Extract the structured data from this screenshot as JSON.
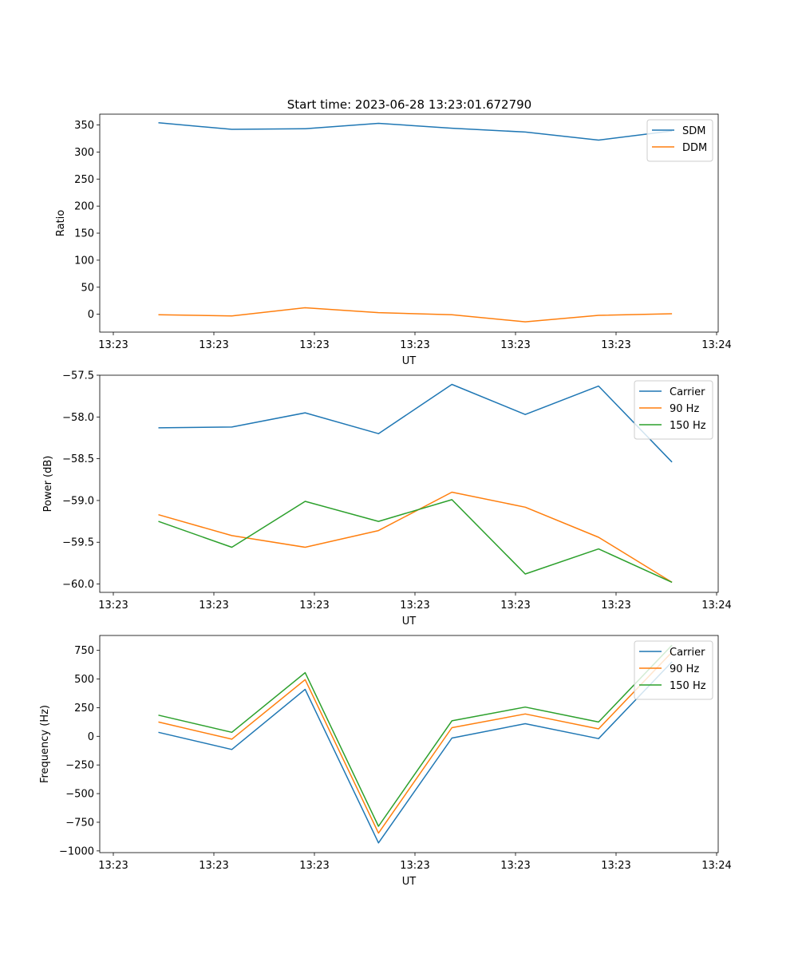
{
  "figure": {
    "title": "Start time: 2023-06-28 13:23:01.672790"
  },
  "chart_data": [
    {
      "type": "line",
      "title": "Start time: 2023-06-28 13:23:01.672790",
      "xlabel": "UT",
      "ylabel": "Ratio",
      "x_tick_labels": [
        "13:23",
        "13:23",
        "13:23",
        "13:23",
        "13:23",
        "13:23",
        "13:24"
      ],
      "x_points": [
        1,
        2,
        3,
        4,
        5,
        6,
        7,
        8
      ],
      "xlim": [
        0.2,
        8.63
      ],
      "ylim": [
        -33,
        370
      ],
      "y_ticks": [
        0,
        50,
        100,
        150,
        200,
        250,
        300,
        350
      ],
      "legend_position": "top-right",
      "series": [
        {
          "name": "SDM",
          "color": "#1f77b4",
          "values": [
            354,
            342,
            343,
            353,
            344,
            337,
            322,
            339
          ]
        },
        {
          "name": "DDM",
          "color": "#ff7f0e",
          "values": [
            -1,
            -3,
            12,
            3,
            -1,
            -14,
            -2,
            1
          ]
        }
      ]
    },
    {
      "type": "line",
      "xlabel": "UT",
      "ylabel": "Power (dB)",
      "x_tick_labels": [
        "13:23",
        "13:23",
        "13:23",
        "13:23",
        "13:23",
        "13:23",
        "13:24"
      ],
      "x_points": [
        1,
        2,
        3,
        4,
        5,
        6,
        7,
        8
      ],
      "xlim": [
        0.2,
        8.63
      ],
      "ylim": [
        -60.1,
        -57.5
      ],
      "y_ticks": [
        -60.0,
        -59.5,
        -59.0,
        -58.5,
        -58.0,
        -57.5
      ],
      "y_tick_labels": [
        "−60.0",
        "−59.5",
        "−59.0",
        "−58.5",
        "−58.0",
        "−57.5"
      ],
      "legend_position": "top-right",
      "series": [
        {
          "name": "Carrier",
          "color": "#1f77b4",
          "values": [
            -58.13,
            -58.12,
            -57.95,
            -58.2,
            -57.61,
            -57.97,
            -57.63,
            -58.54
          ]
        },
        {
          "name": "90 Hz",
          "color": "#ff7f0e",
          "values": [
            -59.17,
            -59.42,
            -59.56,
            -59.36,
            -58.9,
            -59.08,
            -59.44,
            -59.98
          ]
        },
        {
          "name": "150 Hz",
          "color": "#2ca02c",
          "values": [
            -59.25,
            -59.56,
            -59.01,
            -59.25,
            -58.99,
            -59.88,
            -59.58,
            -59.98
          ]
        }
      ]
    },
    {
      "type": "line",
      "xlabel": "UT",
      "ylabel": "Frequency (Hz)",
      "x_tick_labels": [
        "13:23",
        "13:23",
        "13:23",
        "13:23",
        "13:23",
        "13:23",
        "13:24"
      ],
      "x_points": [
        1,
        2,
        3,
        4,
        5,
        6,
        7,
        8
      ],
      "xlim": [
        0.2,
        8.63
      ],
      "ylim": [
        -1015,
        880
      ],
      "y_ticks": [
        -1000,
        -750,
        -500,
        -250,
        0,
        250,
        500,
        750
      ],
      "y_tick_labels": [
        "−1000",
        "−750",
        "−500",
        "−250",
        "0",
        "250",
        "500",
        "750"
      ],
      "legend_position": "top-right",
      "series": [
        {
          "name": "Carrier",
          "color": "#1f77b4",
          "values": [
            35,
            -115,
            410,
            -930,
            -15,
            110,
            -20,
            650
          ]
        },
        {
          "name": "90 Hz",
          "color": "#ff7f0e",
          "values": [
            125,
            -25,
            495,
            -845,
            75,
            195,
            65,
            735
          ]
        },
        {
          "name": "150 Hz",
          "color": "#2ca02c",
          "values": [
            185,
            35,
            555,
            -785,
            135,
            255,
            125,
            795
          ]
        }
      ]
    }
  ]
}
